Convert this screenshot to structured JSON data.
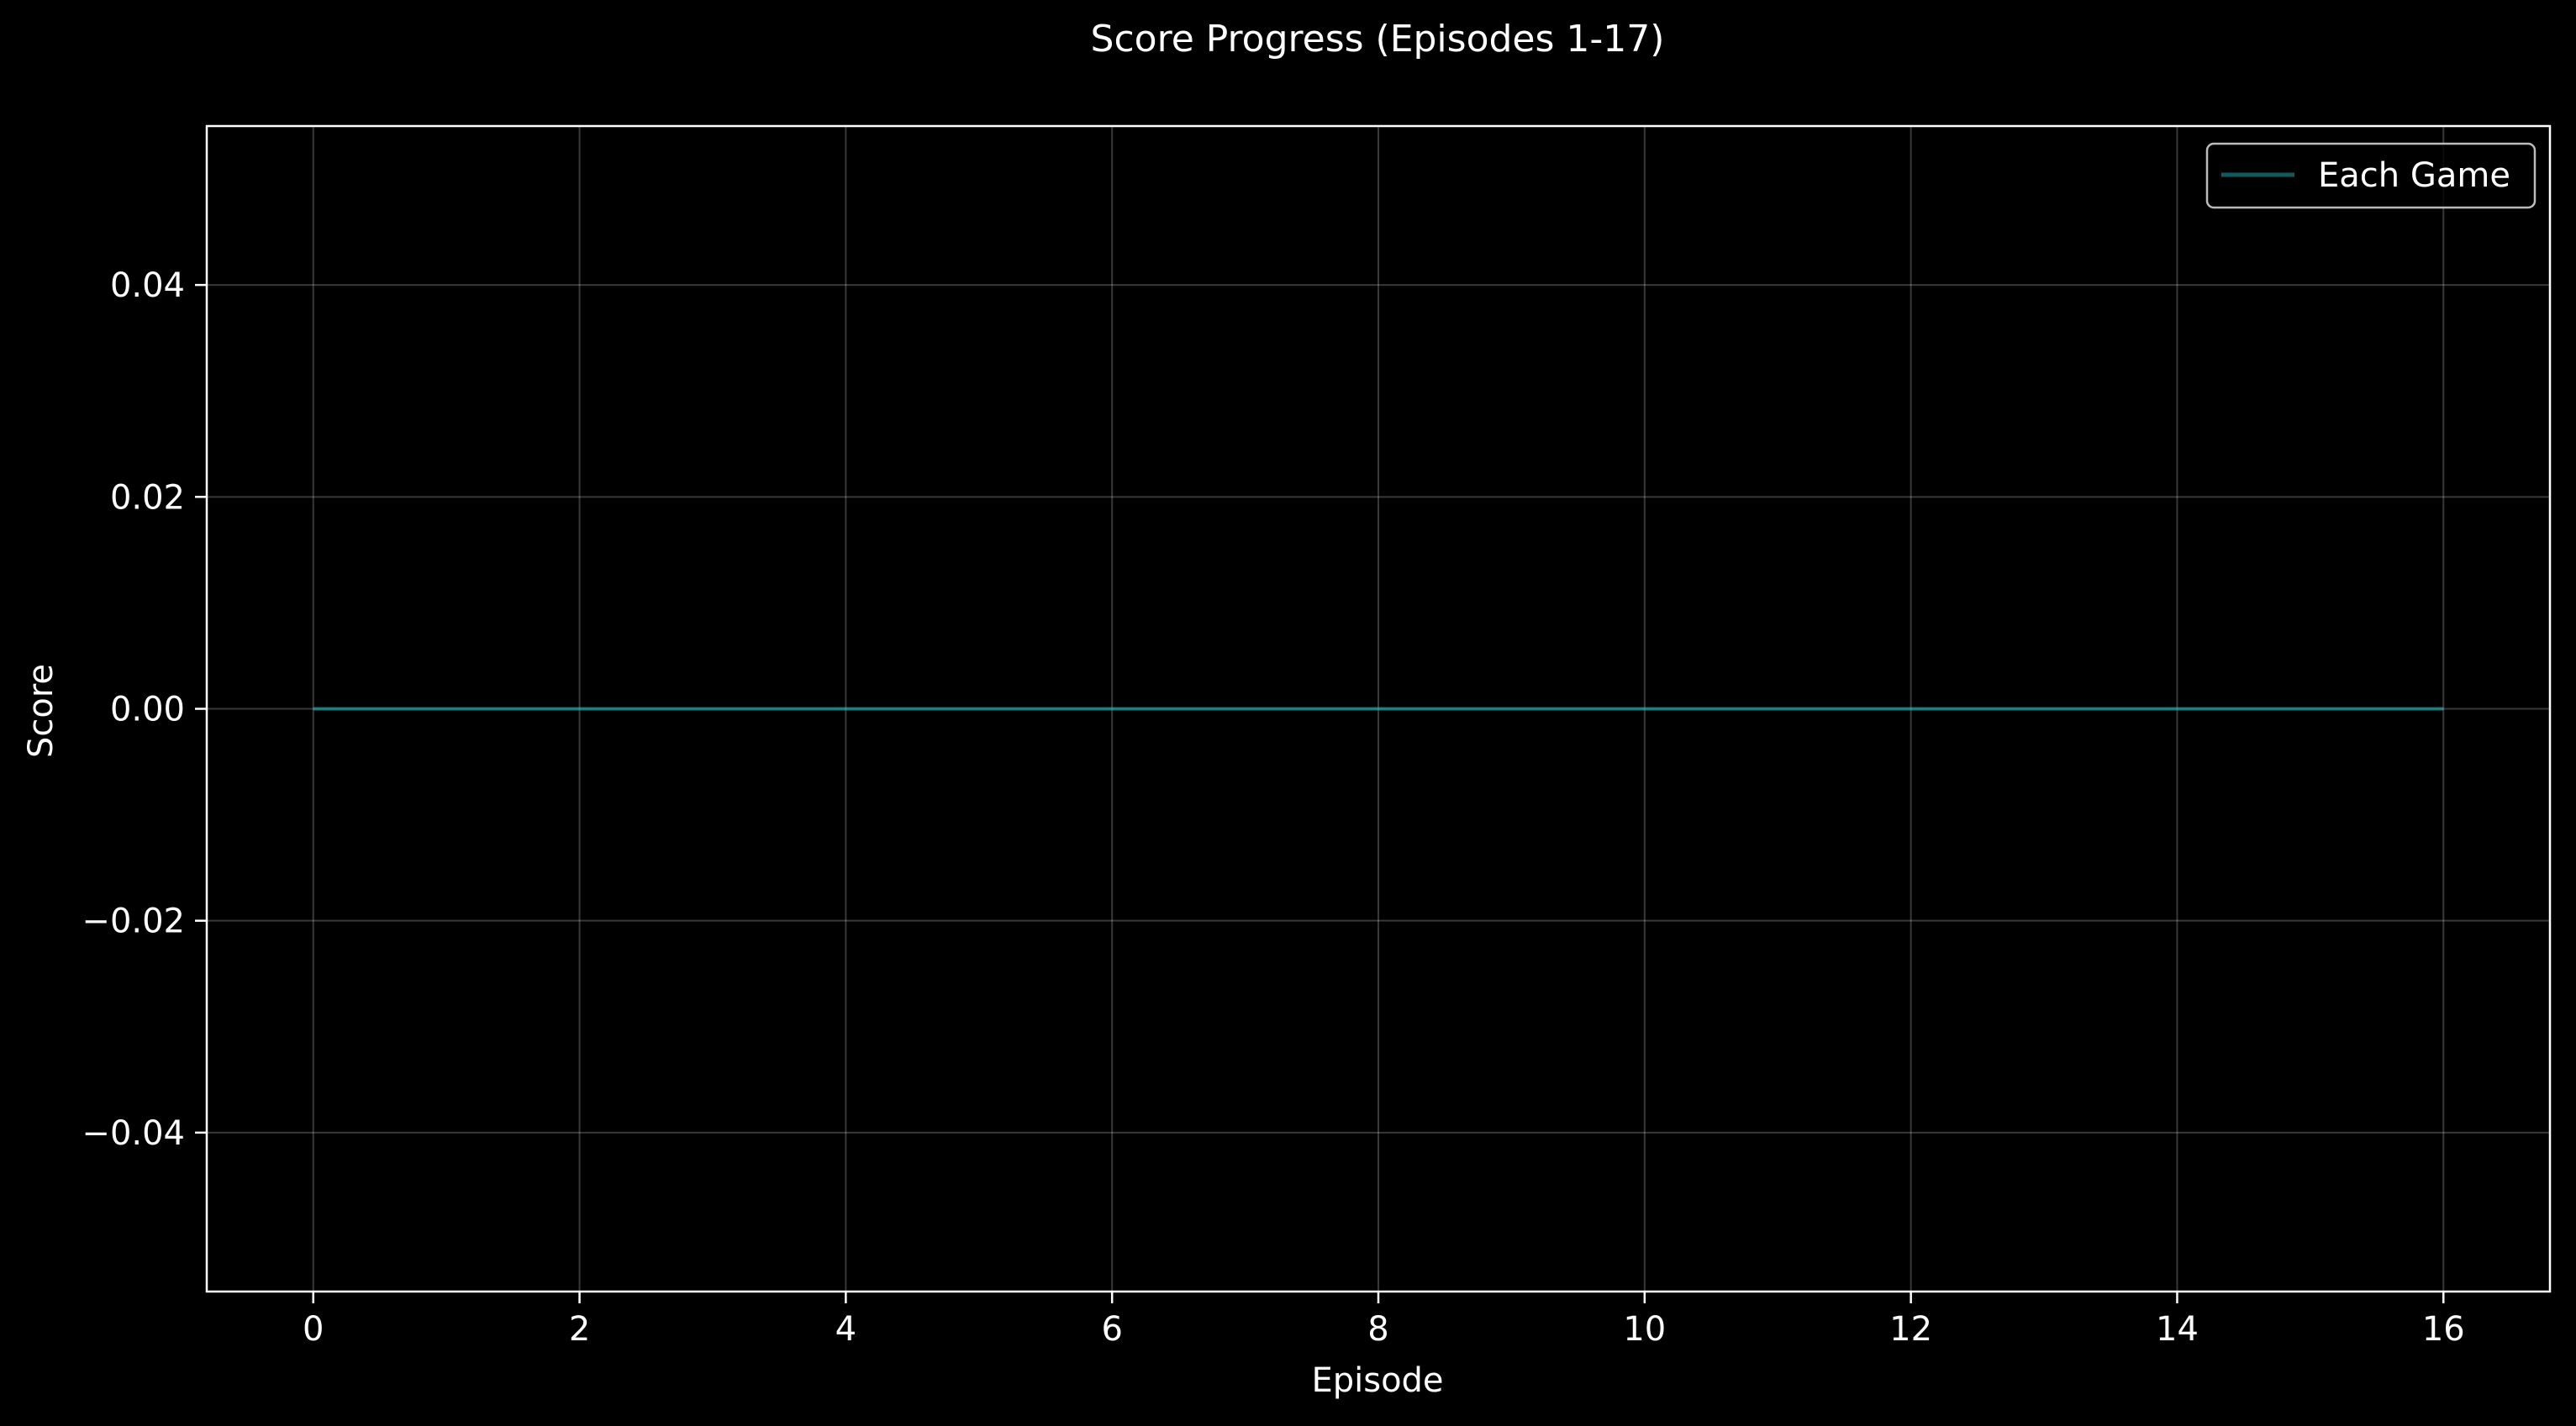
{
  "chart_data": {
    "type": "line",
    "title": "Score Progress (Episodes 1-17)",
    "xlabel": "Episode",
    "ylabel": "Score",
    "xlim": [
      -0.8,
      16.8
    ],
    "ylim": [
      -0.055,
      0.055
    ],
    "xticks": [
      0,
      2,
      4,
      6,
      8,
      10,
      12,
      14,
      16
    ],
    "xtick_labels": [
      "0",
      "2",
      "4",
      "6",
      "8",
      "10",
      "12",
      "14",
      "16"
    ],
    "yticks": [
      -0.04,
      -0.02,
      0.0,
      0.02,
      0.04
    ],
    "ytick_labels": [
      "−0.04",
      "−0.02",
      "0.00",
      "0.02",
      "0.04"
    ],
    "grid": true,
    "legend_position": "top-right",
    "background_color": "#000000",
    "series": [
      {
        "name": "Each Game",
        "color": "#1fb5b5",
        "x": [
          0,
          1,
          2,
          3,
          4,
          5,
          6,
          7,
          8,
          9,
          10,
          11,
          12,
          13,
          14,
          15,
          16
        ],
        "y": [
          0,
          0,
          0,
          0,
          0,
          0,
          0,
          0,
          0,
          0,
          0,
          0,
          0,
          0,
          0,
          0,
          0
        ]
      }
    ]
  }
}
